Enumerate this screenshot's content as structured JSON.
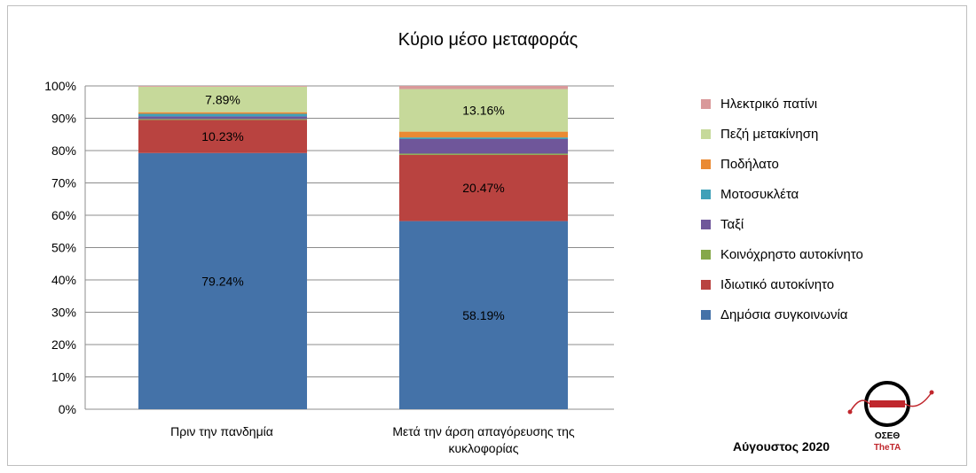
{
  "chart_data": {
    "type": "bar",
    "stacked": true,
    "title": "Κύριο μέσο μεταφοράς",
    "categories": [
      "Πριν την πανδημία",
      "Μετά την άρση απαγόρευσης της κυκλοφορίας"
    ],
    "ylim": [
      0,
      100
    ],
    "yticks": [
      "0%",
      "10%",
      "20%",
      "30%",
      "40%",
      "50%",
      "60%",
      "70%",
      "80%",
      "90%",
      "100%"
    ],
    "grid": true,
    "legend_position": "right",
    "series": [
      {
        "name": "Δημόσια συγκοινωνία",
        "color": "#4472a8",
        "values": [
          79.24,
          58.19
        ],
        "labels": [
          "79.24%",
          "58.19%"
        ]
      },
      {
        "name": "Ιδιωτικό αυτοκίνητο",
        "color": "#b94340",
        "values": [
          10.23,
          20.47
        ],
        "labels": [
          "10.23%",
          "20.47%"
        ]
      },
      {
        "name": "Κοινόχρηστο αυτοκίνητο",
        "color": "#86a84a",
        "values": [
          0.3,
          0.4
        ],
        "labels": [
          "",
          ""
        ]
      },
      {
        "name": "Ταξί",
        "color": "#6f569a",
        "values": [
          0.8,
          4.5
        ],
        "labels": [
          "",
          ""
        ]
      },
      {
        "name": "Μοτοσυκλέτα",
        "color": "#3fa0b8",
        "values": [
          0.8,
          0.5
        ],
        "labels": [
          "",
          ""
        ]
      },
      {
        "name": "Ποδήλατο",
        "color": "#ea8a33",
        "values": [
          0.5,
          1.8
        ],
        "labels": [
          "",
          ""
        ]
      },
      {
        "name": "Πεζή μετακίνηση",
        "color": "#c6d99a",
        "values": [
          7.89,
          13.16
        ],
        "labels": [
          "7.89%",
          "13.16%"
        ]
      },
      {
        "name": "Ηλεκτρικό πατίνι",
        "color": "#d9999a",
        "values": [
          0.24,
          0.98
        ],
        "labels": [
          "",
          ""
        ]
      }
    ]
  },
  "legend_order": [
    7,
    6,
    5,
    4,
    3,
    2,
    1,
    0
  ],
  "date_label": "Αύγουστος 2020",
  "logo": {
    "line1": "ΟΣΕΘ",
    "line2": "TheTA"
  }
}
